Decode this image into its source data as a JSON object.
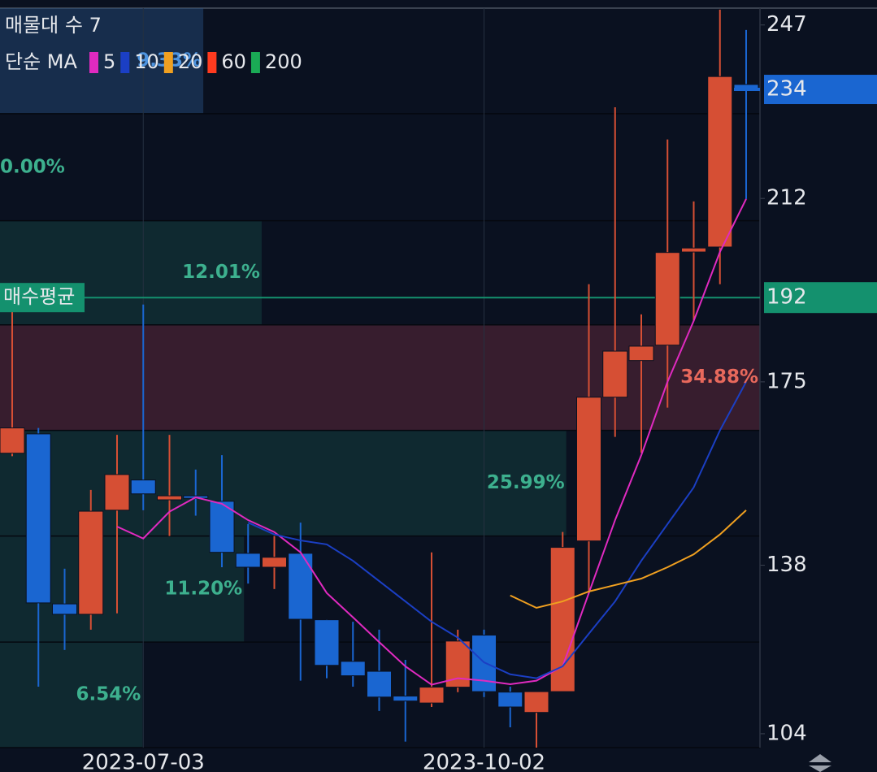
{
  "chart_data": {
    "type": "candlestick",
    "categories": [
      null,
      null,
      null,
      null,
      null,
      "2023-07-03",
      null,
      null,
      null,
      null,
      null,
      null,
      null,
      null,
      null,
      null,
      null,
      null,
      "2023-10-02",
      null,
      null,
      null,
      null,
      null,
      null,
      null,
      null,
      null,
      null
    ],
    "open": [
      160.6,
      164.5,
      130.2,
      128.1,
      149.1,
      155.2,
      151.2,
      152.0,
      150.9,
      140.4,
      137.6,
      140.4,
      127.0,
      118.6,
      116.6,
      111.6,
      110.2,
      113.4,
      123.9,
      112.4,
      108.3,
      112.5,
      142.9,
      171.9,
      179.3,
      182.4,
      201.2,
      202.2,
      235
    ],
    "high": [
      189.8,
      165.7,
      137.3,
      153.2,
      164.3,
      190.6,
      164.3,
      157.3,
      160.2,
      146.3,
      143.9,
      146.6,
      127.1,
      126.6,
      125.0,
      118.9,
      140.6,
      125.0,
      125.0,
      113.5,
      112.5,
      144.7,
      194.7,
      230.4,
      188.6,
      223.9,
      211.4,
      250.1,
      246
    ],
    "low": [
      160,
      113.5,
      120.9,
      125,
      128.3,
      149.1,
      143.9,
      148,
      137.6,
      134.3,
      133.2,
      114.7,
      115.2,
      113.5,
      108.6,
      102.4,
      109.4,
      112.4,
      111.4,
      105.3,
      101.2,
      112.5,
      132.4,
      163.9,
      160.7,
      169.8,
      187.3,
      194.7,
      211.9
    ],
    "close": [
      165.7,
      130.4,
      128.1,
      148.9,
      156.3,
      152.4,
      152.0,
      151.6,
      140.6,
      137.6,
      139.6,
      127.1,
      117.8,
      115.7,
      111.4,
      110.6,
      113.4,
      122.7,
      112.5,
      109.4,
      112.5,
      141.6,
      171.9,
      181.2,
      182.2,
      201.1,
      202.0,
      236.6,
      234
    ],
    "up_color": "#d64f34",
    "down_color": "#1a66d1",
    "ylim": [
      101.2,
      250.4
    ],
    "yticks": [
      104,
      138,
      175,
      212,
      247
    ],
    "legend_title": "매물대 수 7",
    "ma_label": "단순 MA",
    "series": [
      {
        "name": "5",
        "color": "#e02ac0",
        "values": [
          null,
          null,
          null,
          null,
          145.8,
          143.4,
          148.8,
          151.7,
          150.4,
          147.1,
          144.7,
          140.6,
          132.4,
          127.5,
          122.5,
          117.6,
          113.9,
          115.2,
          114.7,
          114.0,
          114.7,
          117.6,
          132.4,
          147.1,
          160.2,
          175.0,
          187.3,
          201.2,
          211.9
        ]
      },
      {
        "name": "10",
        "color": "#1b3fc4",
        "values": [
          null,
          null,
          null,
          null,
          null,
          null,
          null,
          null,
          null,
          146.6,
          144.2,
          143.0,
          142.2,
          138.9,
          134.8,
          130.7,
          126.6,
          123.4,
          118.4,
          116.0,
          115.2,
          117.6,
          124.2,
          130.7,
          138.9,
          146.3,
          153.7,
          165.2,
          175.0
        ]
      },
      {
        "name": "20",
        "color": "#f0a020",
        "values": [
          null,
          null,
          null,
          null,
          null,
          null,
          null,
          null,
          null,
          null,
          null,
          null,
          null,
          null,
          null,
          null,
          null,
          null,
          null,
          131.9,
          129.4,
          130.7,
          132.7,
          134.0,
          135.3,
          137.6,
          140.2,
          144.2,
          149.1
        ]
      },
      {
        "name": "60",
        "color": "#ff3b1f"
      },
      {
        "name": "200",
        "color": "#1aaa55"
      }
    ],
    "current_price": 234,
    "current_color": "#1a66d1",
    "average_label": "매수평균",
    "average_price": 192,
    "average_color": "#14916e",
    "volume_profile": {
      "bins": [
        101.2,
        122.5,
        143.9,
        165.2,
        186.5,
        207.5,
        229.1,
        250.4
      ],
      "values": [
        6.54,
        11.2,
        25.99,
        34.88,
        12.01,
        0.0,
        9.33
      ],
      "value_labels": [
        "6.54%",
        "11.20%",
        "25.99%",
        "34.88%",
        "12.01%",
        "0.00%",
        "9.33%"
      ]
    }
  }
}
